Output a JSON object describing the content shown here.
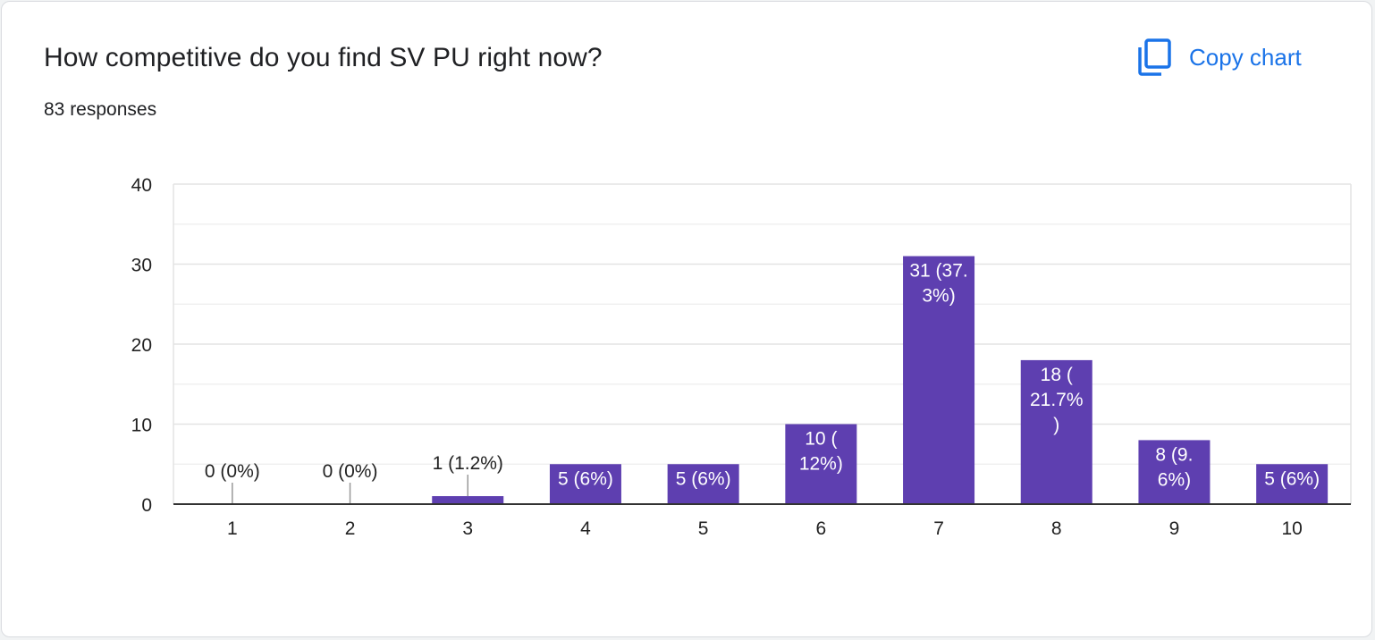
{
  "card": {
    "title": "How competitive do you find SV PU right now?",
    "subtitle": "83 responses",
    "copy_button": {
      "label": "Copy chart",
      "icon": "copy-icon"
    }
  },
  "colors": {
    "bar": "#5e3fb0",
    "accent": "#1a73e8",
    "grid": "#e6e6e6",
    "axis": "#333333"
  },
  "chart_data": {
    "type": "bar",
    "title": "",
    "xlabel": "",
    "ylabel": "",
    "categories": [
      "1",
      "2",
      "3",
      "4",
      "5",
      "6",
      "7",
      "8",
      "9",
      "10"
    ],
    "values": [
      0,
      0,
      1,
      5,
      5,
      10,
      31,
      18,
      8,
      5
    ],
    "labels": [
      [
        "0 (0%)"
      ],
      [
        "0 (0%)"
      ],
      [
        "1 (1.2%)"
      ],
      [
        "5 (6%)"
      ],
      [
        "5 (6%)"
      ],
      [
        "10 (",
        "12%)"
      ],
      [
        "31 (37.",
        "3%)"
      ],
      [
        "18 (",
        "21.7%",
        ")"
      ],
      [
        "8 (9.",
        "6%)"
      ],
      [
        "5 (6%)"
      ]
    ],
    "ylim": [
      0,
      40
    ],
    "yticks": [
      0,
      10,
      20,
      30,
      40
    ],
    "minor_grid_step": 5,
    "grid": true,
    "legend": "none"
  }
}
